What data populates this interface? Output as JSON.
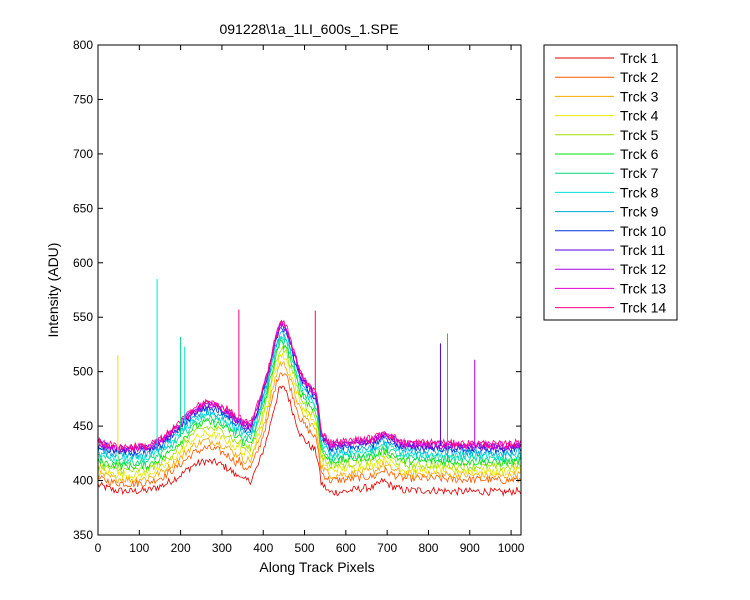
{
  "chart_data": {
    "type": "line",
    "title": "091228\\1a_1LI_600s_1.SPE",
    "xlabel": "Along Track Pixels",
    "ylabel": "Intensity (ADU)",
    "xlim": [
      0,
      1024
    ],
    "ylim": [
      350,
      800
    ],
    "xticks": [
      0,
      100,
      200,
      300,
      400,
      500,
      600,
      700,
      800,
      900,
      1000
    ],
    "yticks": [
      350,
      400,
      450,
      500,
      550,
      600,
      650,
      700,
      750,
      800
    ],
    "grid": false,
    "legend_position": "outside-top-right",
    "x": [
      0,
      40,
      80,
      120,
      160,
      200,
      230,
      260,
      290,
      320,
      335,
      342,
      350,
      370,
      390,
      410,
      425,
      440,
      455,
      470,
      490,
      510,
      525,
      532,
      540,
      560,
      600,
      640,
      670,
      690,
      710,
      740,
      780,
      820,
      860,
      900,
      940,
      980,
      1024
    ],
    "series": [
      {
        "name": "Trck 1",
        "color": "#e00000",
        "values": [
          396,
          391,
          390,
          391,
          396,
          405,
          414,
          418,
          416,
          410,
          404,
          407,
          400,
          400,
          416,
          440,
          465,
          485,
          484,
          465,
          442,
          433,
          428,
          420,
          398,
          389,
          390,
          393,
          394,
          400,
          395,
          391,
          391,
          391,
          390,
          390,
          390,
          389,
          391
        ]
      },
      {
        "name": "Trck 2",
        "color": "#ff5a00",
        "values": [
          402,
          398,
          397,
          398,
          404,
          415,
          425,
          430,
          428,
          422,
          416,
          419,
          412,
          412,
          430,
          455,
          480,
          500,
          498,
          480,
          456,
          446,
          440,
          432,
          408,
          400,
          401,
          403,
          404,
          410,
          406,
          402,
          402,
          402,
          401,
          401,
          401,
          400,
          401
        ]
      },
      {
        "name": "Trck 3",
        "color": "#f5a800",
        "values": [
          406,
          402,
          401,
          402,
          409,
          421,
          432,
          437,
          435,
          429,
          423,
          426,
          419,
          419,
          438,
          463,
          488,
          508,
          506,
          488,
          464,
          454,
          448,
          440,
          414,
          405,
          406,
          408,
          409,
          415,
          411,
          406,
          406,
          406,
          405,
          405,
          405,
          404,
          406
        ]
      },
      {
        "name": "Trck 4",
        "color": "#e8e800",
        "values": [
          410,
          406,
          405,
          406,
          413,
          426,
          438,
          443,
          441,
          435,
          429,
          432,
          425,
          425,
          444,
          470,
          495,
          515,
          513,
          495,
          471,
          460,
          454,
          446,
          419,
          410,
          411,
          413,
          414,
          420,
          416,
          410,
          410,
          410,
          409,
          409,
          409,
          408,
          410
        ]
      },
      {
        "name": "Trck 5",
        "color": "#a0e000",
        "values": [
          414,
          410,
          409,
          410,
          418,
          431,
          443,
          449,
          447,
          441,
          434,
          437,
          430,
          430,
          450,
          476,
          501,
          521,
          519,
          501,
          476,
          465,
          459,
          451,
          424,
          414,
          415,
          417,
          418,
          424,
          420,
          414,
          414,
          414,
          413,
          413,
          413,
          412,
          414
        ]
      },
      {
        "name": "Trck 6",
        "color": "#00e000",
        "values": [
          418,
          414,
          413,
          414,
          422,
          436,
          448,
          454,
          452,
          446,
          439,
          442,
          435,
          435,
          455,
          481,
          506,
          526,
          524,
          506,
          481,
          470,
          464,
          456,
          428,
          418,
          419,
          421,
          422,
          428,
          424,
          418,
          418,
          418,
          417,
          417,
          417,
          416,
          418
        ]
      },
      {
        "name": "Trck 7",
        "color": "#00d880",
        "values": [
          422,
          418,
          417,
          418,
          426,
          440,
          452,
          458,
          456,
          450,
          443,
          446,
          439,
          439,
          459,
          485,
          510,
          530,
          528,
          510,
          485,
          474,
          468,
          460,
          432,
          421,
          422,
          424,
          425,
          431,
          427,
          421,
          421,
          421,
          420,
          420,
          420,
          419,
          421
        ]
      },
      {
        "name": "Trck 8",
        "color": "#00e0d8",
        "values": [
          425,
          421,
          420,
          421,
          429,
          443,
          455,
          461,
          459,
          453,
          446,
          449,
          442,
          442,
          462,
          488,
          513,
          533,
          531,
          513,
          488,
          477,
          471,
          463,
          435,
          424,
          425,
          427,
          428,
          434,
          430,
          424,
          424,
          424,
          423,
          423,
          423,
          422,
          424
        ]
      },
      {
        "name": "Trck 9",
        "color": "#00a8d8",
        "values": [
          428,
          424,
          423,
          424,
          432,
          446,
          458,
          464,
          462,
          456,
          449,
          452,
          445,
          445,
          465,
          491,
          516,
          536,
          534,
          516,
          491,
          480,
          474,
          466,
          438,
          427,
          428,
          430,
          431,
          437,
          433,
          427,
          427,
          427,
          426,
          426,
          426,
          425,
          427
        ]
      },
      {
        "name": "Trck 10",
        "color": "#0030e0",
        "values": [
          431,
          427,
          426,
          427,
          435,
          449,
          461,
          467,
          465,
          459,
          452,
          455,
          448,
          448,
          468,
          494,
          519,
          541,
          539,
          519,
          494,
          483,
          477,
          469,
          441,
          430,
          431,
          433,
          434,
          440,
          436,
          430,
          430,
          430,
          429,
          429,
          429,
          428,
          430
        ]
      },
      {
        "name": "Trck 11",
        "color": "#5000d8",
        "values": [
          433,
          429,
          428,
          429,
          437,
          451,
          463,
          469,
          467,
          461,
          454,
          457,
          450,
          450,
          470,
          496,
          521,
          542,
          540,
          521,
          496,
          485,
          479,
          471,
          443,
          432,
          433,
          435,
          436,
          442,
          438,
          432,
          432,
          432,
          431,
          431,
          431,
          430,
          432
        ]
      },
      {
        "name": "Trck 12",
        "color": "#b000e0",
        "values": [
          434,
          430,
          429,
          430,
          438,
          452,
          464,
          470,
          468,
          462,
          455,
          458,
          451,
          451,
          471,
          497,
          522,
          543,
          541,
          522,
          497,
          486,
          480,
          472,
          444,
          433,
          434,
          436,
          437,
          443,
          439,
          433,
          433,
          433,
          432,
          432,
          432,
          431,
          433
        ]
      },
      {
        "name": "Trck 13",
        "color": "#e000d0",
        "values": [
          435,
          431,
          430,
          431,
          439,
          453,
          465,
          471,
          469,
          463,
          456,
          459,
          452,
          452,
          472,
          498,
          523,
          544,
          542,
          523,
          498,
          487,
          481,
          473,
          445,
          434,
          435,
          437,
          438,
          444,
          440,
          434,
          434,
          434,
          433,
          433,
          433,
          432,
          434
        ]
      },
      {
        "name": "Trck 14",
        "color": "#ff0080",
        "values": [
          436,
          432,
          431,
          432,
          440,
          454,
          466,
          472,
          470,
          464,
          457,
          460,
          453,
          453,
          473,
          499,
          524,
          545,
          543,
          524,
          499,
          488,
          482,
          474,
          446,
          435,
          436,
          438,
          439,
          445,
          441,
          435,
          435,
          435,
          434,
          434,
          434,
          433,
          435
        ]
      }
    ],
    "spikes": [
      {
        "series": 4,
        "x": 48,
        "y": 515
      },
      {
        "series": 8,
        "x": 143,
        "y": 585
      },
      {
        "series": 7,
        "x": 200,
        "y": 532
      },
      {
        "series": 8,
        "x": 210,
        "y": 523
      },
      {
        "series": 14,
        "x": 341,
        "y": 557
      },
      {
        "series": 14,
        "x": 526,
        "y": 556
      },
      {
        "series": 11,
        "x": 829,
        "y": 526
      },
      {
        "series": 6,
        "x": 846,
        "y": 535
      },
      {
        "series": 12,
        "x": 912,
        "y": 511
      }
    ]
  }
}
